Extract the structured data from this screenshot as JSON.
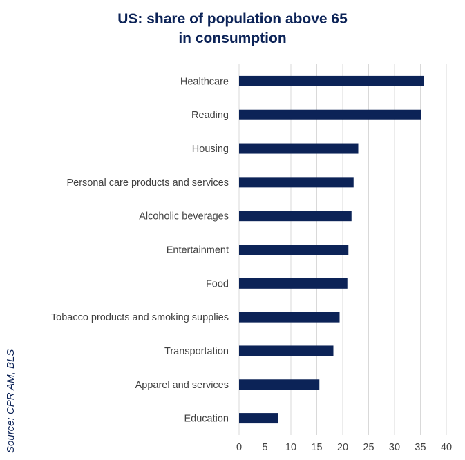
{
  "chart_data": {
    "type": "bar",
    "orientation": "horizontal",
    "title_lines": [
      "US: share of population above 65",
      "in consumption"
    ],
    "categories": [
      "Healthcare",
      "Reading",
      "Housing",
      "Personal care products and services",
      "Alcoholic beverages",
      "Entertainment",
      "Food",
      "Tobacco products and smoking supplies",
      "Transportation",
      "Apparel and services",
      "Education"
    ],
    "values": [
      35.6,
      35.1,
      23.0,
      22.1,
      21.7,
      21.1,
      20.9,
      19.4,
      18.2,
      15.5,
      7.6
    ],
    "xlim": [
      0,
      40
    ],
    "xticks": [
      0,
      5,
      10,
      15,
      20,
      25,
      30,
      35,
      40
    ],
    "grid": "vertical",
    "bar_color": "#0c2357",
    "grid_color": "#d9d9d9"
  },
  "source": "Source: CPR AM, BLS"
}
